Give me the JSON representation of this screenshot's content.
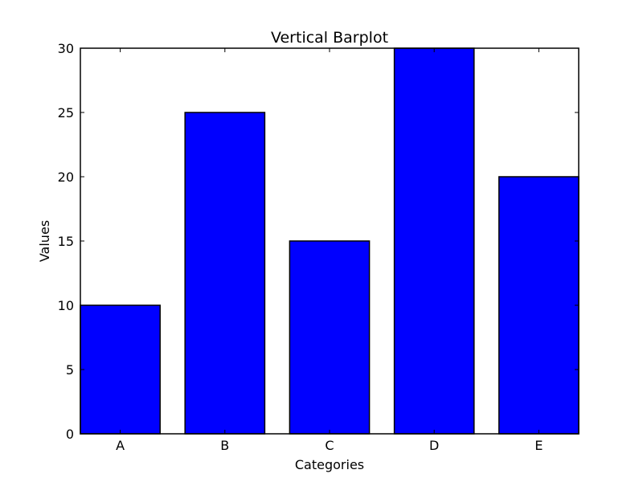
{
  "chart_data": {
    "type": "bar",
    "title": "Vertical Barplot",
    "xlabel": "Categories",
    "ylabel": "Values",
    "categories": [
      "A",
      "B",
      "C",
      "D",
      "E"
    ],
    "values": [
      10,
      25,
      15,
      30,
      20
    ],
    "ylim": [
      0,
      30
    ],
    "yticks": [
      0,
      5,
      10,
      15,
      20,
      25,
      30
    ],
    "bar_color": "#0000ff",
    "grid": false,
    "legend": "none"
  }
}
